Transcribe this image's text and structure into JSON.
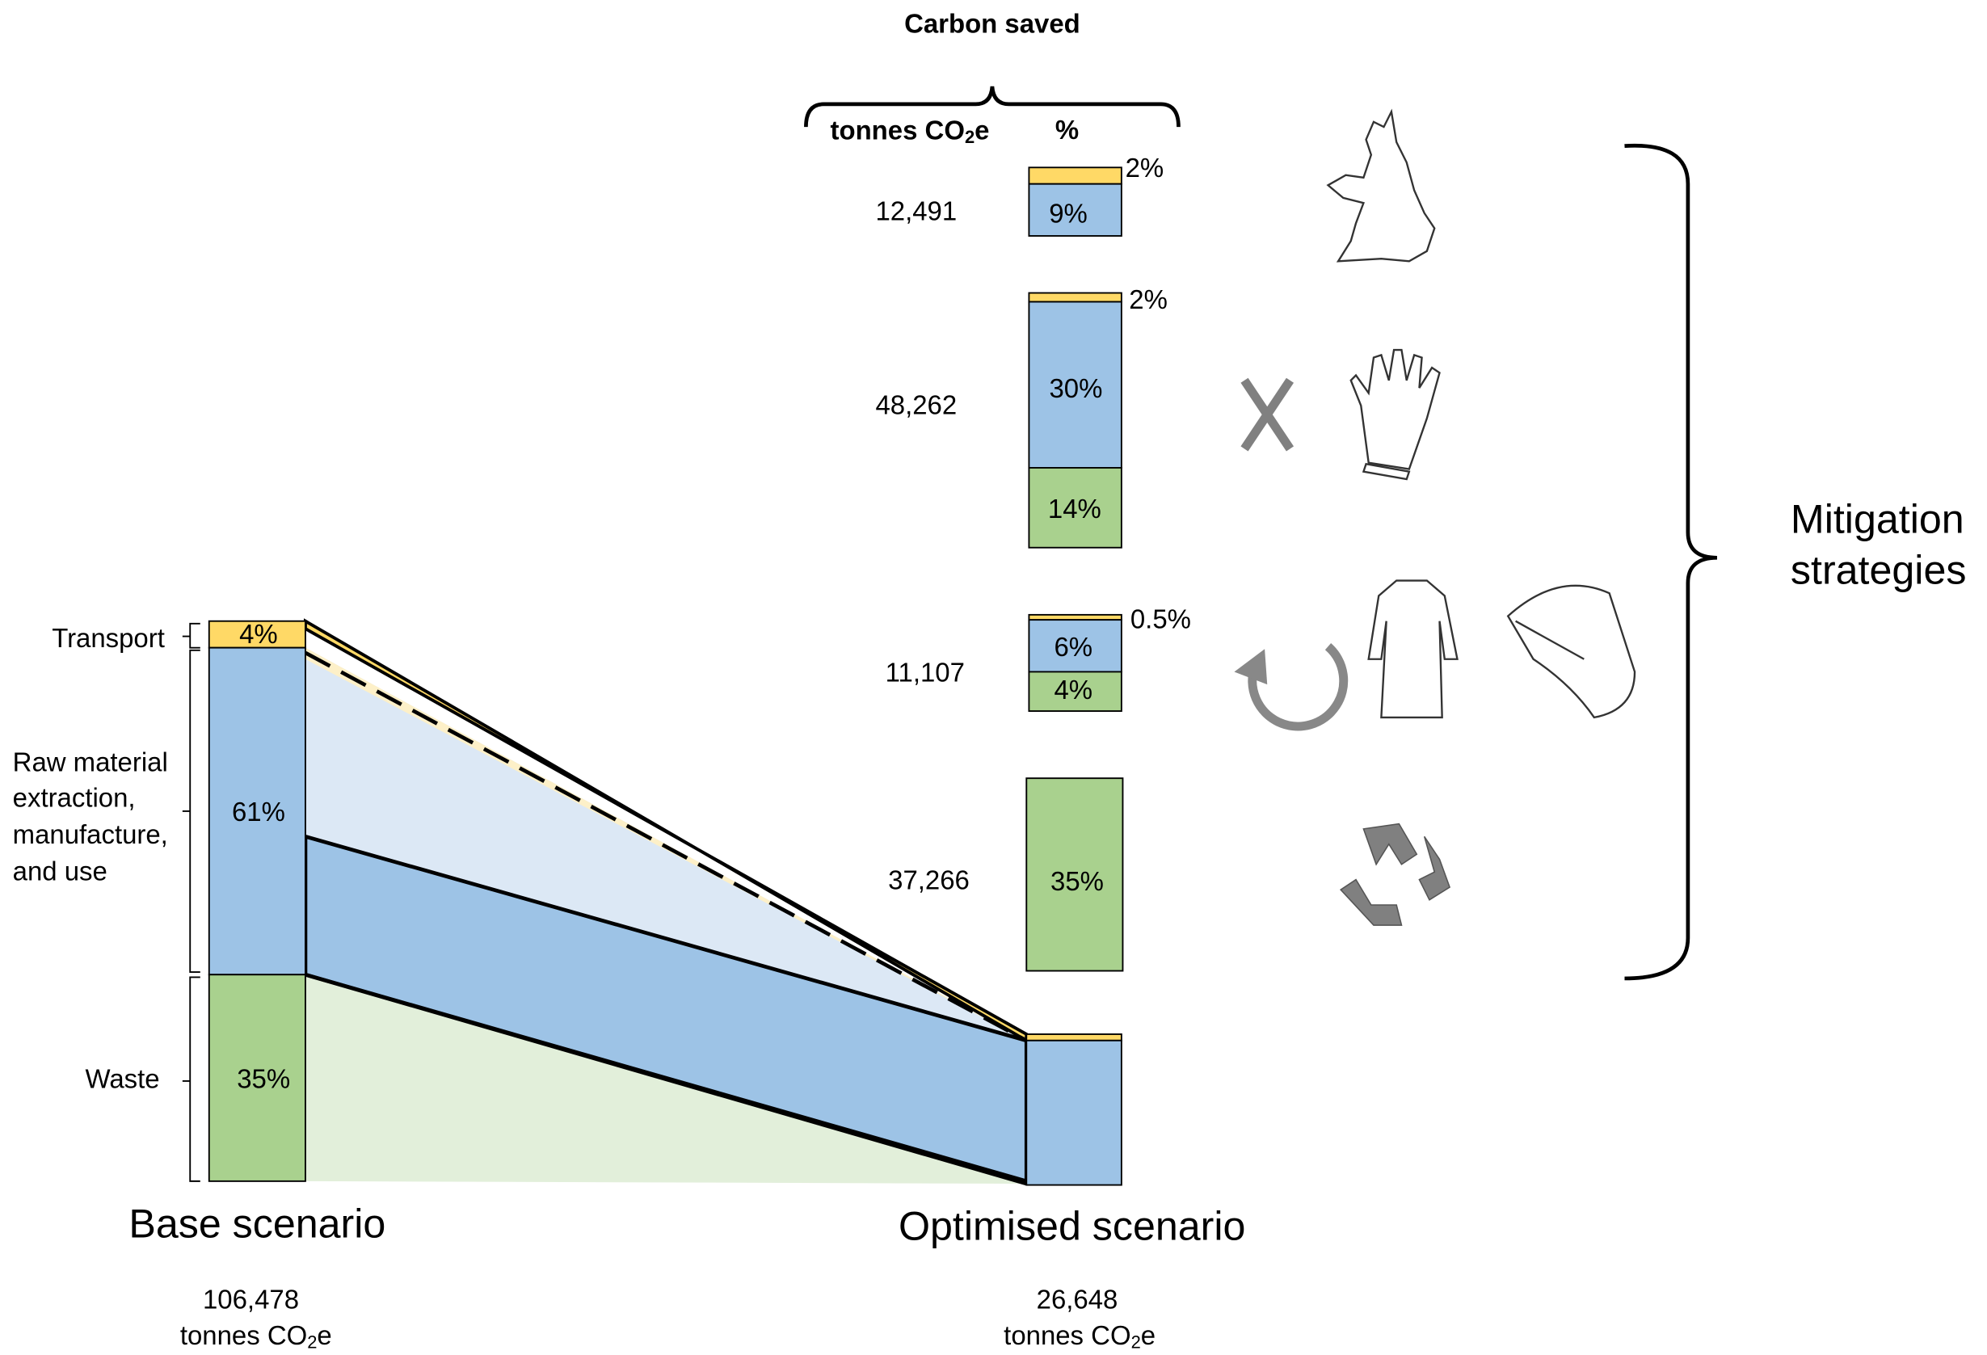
{
  "unit": {
    "prefix": "tonnes CO",
    "sub": "2",
    "suffix": "e"
  },
  "header": {
    "title": "Carbon saved",
    "percent_column": "%"
  },
  "strategies": [
    {
      "saved": "12,491",
      "segments": [
        "2%",
        "9%"
      ]
    },
    {
      "saved": "48,262",
      "segments": [
        "2%",
        "30%",
        "14%"
      ]
    },
    {
      "saved": "11,107",
      "segments": [
        "0.5%",
        "6%",
        "4%"
      ]
    },
    {
      "saved": "37,266",
      "segments": [
        "35%"
      ]
    }
  ],
  "side_label": [
    "Mitigation",
    "strategies"
  ],
  "base": {
    "title": "Base scenario",
    "total": "106,478",
    "categories": [
      {
        "label": [
          "Transport"
        ],
        "share": "4%"
      },
      {
        "label": [
          "Raw material",
          "extraction,",
          "manufacture,",
          "and use"
        ],
        "share": "61%"
      },
      {
        "label": [
          "Waste"
        ],
        "share": "35%"
      }
    ]
  },
  "optimised": {
    "title": "Optimised scenario",
    "total": "26,648"
  }
}
